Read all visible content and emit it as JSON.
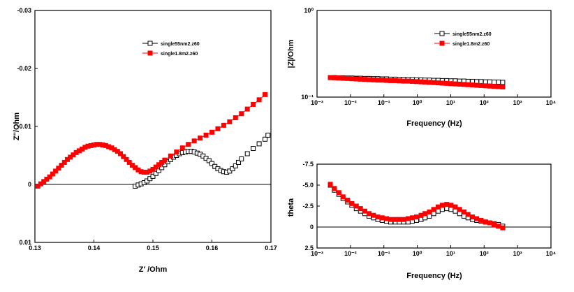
{
  "chart_data": [
    {
      "type": "scatter",
      "xlabel": "Z' /Ohm",
      "ylabel": "Z''/Ohm",
      "xlim": [
        0.13,
        0.17
      ],
      "ylim": [
        0.01,
        -0.03
      ],
      "x_ticks": [
        "0.13",
        "0.14",
        "0.15",
        "0.16",
        "0.17"
      ],
      "y_ticks": [
        "-0.03",
        "-0.02",
        "-0.01",
        "0",
        "0.01"
      ],
      "legend_position": "top-right",
      "zero_line": true,
      "series": [
        {
          "name": "single55nm2.z60",
          "color": "#000000",
          "marker": "open-square",
          "x": [
            0.147,
            0.1475,
            0.148,
            0.1485,
            0.149,
            0.1495,
            0.15,
            0.1505,
            0.151,
            0.1515,
            0.152,
            0.1525,
            0.153,
            0.1535,
            0.154,
            0.1545,
            0.155,
            0.1555,
            0.156,
            0.1565,
            0.157,
            0.1575,
            0.158,
            0.1585,
            0.159,
            0.1595,
            0.16,
            0.1605,
            0.161,
            0.1615,
            0.162,
            0.1625,
            0.163,
            0.1635,
            0.164,
            0.1645,
            0.165,
            0.166,
            0.167,
            0.168,
            0.169,
            0.1695
          ],
          "y": [
            0.0003,
            0.0001,
            -0.0001,
            -0.0003,
            -0.0006,
            -0.001,
            -0.0014,
            -0.0019,
            -0.0024,
            -0.0029,
            -0.0034,
            -0.0039,
            -0.0043,
            -0.0047,
            -0.005,
            -0.0053,
            -0.0055,
            -0.0056,
            -0.0057,
            -0.0057,
            -0.0056,
            -0.0054,
            -0.0052,
            -0.0049,
            -0.0045,
            -0.0041,
            -0.0036,
            -0.0031,
            -0.0027,
            -0.0024,
            -0.0022,
            -0.0021,
            -0.0023,
            -0.0027,
            -0.0032,
            -0.0038,
            -0.0044,
            -0.0053,
            -0.0062,
            -0.007,
            -0.0078,
            -0.0085
          ]
        },
        {
          "name": "single1.8m2.z60",
          "color": "#ff0000",
          "marker": "filled-square",
          "x": [
            0.1305,
            0.131,
            0.1315,
            0.132,
            0.1325,
            0.133,
            0.1335,
            0.134,
            0.1345,
            0.135,
            0.1355,
            0.136,
            0.1365,
            0.137,
            0.1375,
            0.138,
            0.1385,
            0.139,
            0.1395,
            0.14,
            0.1405,
            0.141,
            0.1415,
            0.142,
            0.1425,
            0.143,
            0.1435,
            0.144,
            0.1445,
            0.145,
            0.1455,
            0.146,
            0.1465,
            0.147,
            0.1475,
            0.148,
            0.1485,
            0.149,
            0.1495,
            0.15,
            0.1505,
            0.151,
            0.1515,
            0.152,
            0.153,
            0.154,
            0.155,
            0.156,
            0.157,
            0.158,
            0.159,
            0.16,
            0.161,
            0.162,
            0.163,
            0.164,
            0.165,
            0.166,
            0.167,
            0.168,
            0.169
          ],
          "y": [
            0.0003,
            -0.0001,
            -0.0005,
            -0.0009,
            -0.0013,
            -0.0018,
            -0.0023,
            -0.0028,
            -0.0033,
            -0.0038,
            -0.0043,
            -0.0047,
            -0.0051,
            -0.0055,
            -0.0058,
            -0.0061,
            -0.0064,
            -0.0066,
            -0.0067,
            -0.0068,
            -0.0069,
            -0.0069,
            -0.0068,
            -0.0067,
            -0.0065,
            -0.0063,
            -0.006,
            -0.0057,
            -0.0053,
            -0.0048,
            -0.0043,
            -0.0038,
            -0.0033,
            -0.0029,
            -0.0025,
            -0.0022,
            -0.0021,
            -0.0021,
            -0.0023,
            -0.0026,
            -0.003,
            -0.0034,
            -0.0038,
            -0.0042,
            -0.0049,
            -0.0056,
            -0.0063,
            -0.0069,
            -0.0075,
            -0.008,
            -0.0085,
            -0.009,
            -0.0096,
            -0.0102,
            -0.0108,
            -0.0115,
            -0.0122,
            -0.013,
            -0.0138,
            -0.0146,
            -0.0155
          ]
        }
      ]
    },
    {
      "type": "scatter",
      "xlabel": "Frequency (Hz)",
      "ylabel": "|Z|/Ohm",
      "x_scale": "log",
      "y_scale": "log",
      "xlim": [
        0.001,
        10000
      ],
      "ylim": [
        0.1,
        1
      ],
      "x_ticks": [
        "10⁻³",
        "10⁻²",
        "10⁻¹",
        "10⁰",
        "10¹",
        "10²",
        "10³",
        "10⁴"
      ],
      "y_ticks": [
        "10⁰",
        "10⁻¹"
      ],
      "legend_position": "top-right",
      "series": [
        {
          "name": "single55nm2.z60",
          "color": "#000000",
          "marker": "open-square",
          "x": [
            0.0025,
            0.0033,
            0.0045,
            0.006,
            0.0082,
            0.011,
            0.015,
            0.02,
            0.027,
            0.036,
            0.049,
            0.066,
            0.089,
            0.12,
            0.16,
            0.22,
            0.29,
            0.39,
            0.53,
            0.71,
            0.95,
            1.3,
            1.7,
            2.3,
            3.1,
            4.2,
            5.6,
            7.6,
            10.2,
            13.7,
            18.5,
            25,
            33,
            45,
            60,
            81,
            110,
            148,
            199,
            268,
            360
          ],
          "y": [
            0.168,
            0.168,
            0.167,
            0.167,
            0.166,
            0.166,
            0.165,
            0.165,
            0.164,
            0.164,
            0.163,
            0.163,
            0.162,
            0.162,
            0.161,
            0.161,
            0.16,
            0.16,
            0.159,
            0.159,
            0.158,
            0.158,
            0.157,
            0.157,
            0.156,
            0.156,
            0.155,
            0.155,
            0.154,
            0.154,
            0.153,
            0.153,
            0.152,
            0.152,
            0.151,
            0.151,
            0.15,
            0.15,
            0.149,
            0.149,
            0.148
          ]
        },
        {
          "name": "single1.8m2.z60",
          "color": "#ff0000",
          "marker": "filled-square",
          "x": [
            0.0025,
            0.0033,
            0.0045,
            0.006,
            0.0082,
            0.011,
            0.015,
            0.02,
            0.027,
            0.036,
            0.049,
            0.066,
            0.089,
            0.12,
            0.16,
            0.22,
            0.29,
            0.39,
            0.53,
            0.71,
            0.95,
            1.3,
            1.7,
            2.3,
            3.1,
            4.2,
            5.6,
            7.6,
            10.2,
            13.7,
            18.5,
            25,
            33,
            45,
            60,
            81,
            110,
            148,
            199,
            268,
            360
          ],
          "y": [
            0.168,
            0.167,
            0.166,
            0.165,
            0.164,
            0.163,
            0.162,
            0.161,
            0.16,
            0.159,
            0.158,
            0.157,
            0.157,
            0.156,
            0.155,
            0.155,
            0.154,
            0.153,
            0.153,
            0.152,
            0.151,
            0.15,
            0.149,
            0.148,
            0.147,
            0.146,
            0.145,
            0.144,
            0.143,
            0.142,
            0.141,
            0.14,
            0.139,
            0.138,
            0.137,
            0.136,
            0.135,
            0.134,
            0.133,
            0.132,
            0.131
          ]
        }
      ]
    },
    {
      "type": "scatter",
      "xlabel": "Frequency (Hz)",
      "ylabel": "theta",
      "x_scale": "log",
      "xlim": [
        0.001,
        10000
      ],
      "ylim": [
        2.5,
        -7.5
      ],
      "x_ticks": [
        "10⁻³",
        "10⁻²",
        "10⁻¹",
        "10⁰",
        "10¹",
        "10²",
        "10³",
        "10⁴"
      ],
      "y_ticks": [
        "-7.5",
        "-5.0",
        "-2.5",
        "0",
        "2.5"
      ],
      "zero_line": true,
      "series": [
        {
          "name": "single55nm2.z60",
          "color": "#000000",
          "marker": "open-square",
          "x": [
            0.0025,
            0.0033,
            0.0045,
            0.006,
            0.0082,
            0.011,
            0.015,
            0.02,
            0.027,
            0.036,
            0.049,
            0.066,
            0.089,
            0.12,
            0.16,
            0.22,
            0.29,
            0.39,
            0.53,
            0.71,
            0.95,
            1.3,
            1.7,
            2.3,
            3.1,
            4.2,
            5.6,
            7.6,
            10.2,
            13.7,
            18.5,
            25,
            33,
            45,
            60,
            81,
            110,
            148,
            199,
            268,
            360
          ],
          "y": [
            -5.0,
            -4.4,
            -3.9,
            -3.4,
            -3.0,
            -2.6,
            -2.2,
            -1.9,
            -1.6,
            -1.3,
            -1.1,
            -0.9,
            -0.8,
            -0.7,
            -0.6,
            -0.6,
            -0.6,
            -0.6,
            -0.6,
            -0.7,
            -0.8,
            -0.9,
            -1.1,
            -1.3,
            -1.6,
            -1.9,
            -2.1,
            -2.2,
            -2.1,
            -1.9,
            -1.6,
            -1.3,
            -1.1,
            -0.9,
            -0.8,
            -0.7,
            -0.6,
            -0.5,
            -0.4,
            -0.3,
            -0.1
          ]
        },
        {
          "name": "single1.8m2.z60",
          "color": "#ff0000",
          "marker": "filled-square",
          "x": [
            0.0025,
            0.0033,
            0.0045,
            0.006,
            0.0082,
            0.011,
            0.015,
            0.02,
            0.027,
            0.036,
            0.049,
            0.066,
            0.089,
            0.12,
            0.16,
            0.22,
            0.29,
            0.39,
            0.53,
            0.71,
            0.95,
            1.3,
            1.7,
            2.3,
            3.1,
            4.2,
            5.6,
            7.6,
            10.2,
            13.7,
            18.5,
            25,
            33,
            45,
            60,
            81,
            110,
            148,
            199,
            268,
            360
          ],
          "y": [
            -5.1,
            -4.6,
            -4.1,
            -3.6,
            -3.2,
            -2.8,
            -2.5,
            -2.2,
            -1.9,
            -1.6,
            -1.4,
            -1.2,
            -1.1,
            -1.0,
            -0.9,
            -0.9,
            -0.9,
            -0.9,
            -1.0,
            -1.1,
            -1.2,
            -1.4,
            -1.6,
            -1.8,
            -2.1,
            -2.4,
            -2.6,
            -2.7,
            -2.6,
            -2.4,
            -2.1,
            -1.8,
            -1.5,
            -1.2,
            -1.0,
            -0.8,
            -0.6,
            -0.5,
            -0.3,
            -0.1,
            0.1
          ]
        }
      ]
    }
  ]
}
